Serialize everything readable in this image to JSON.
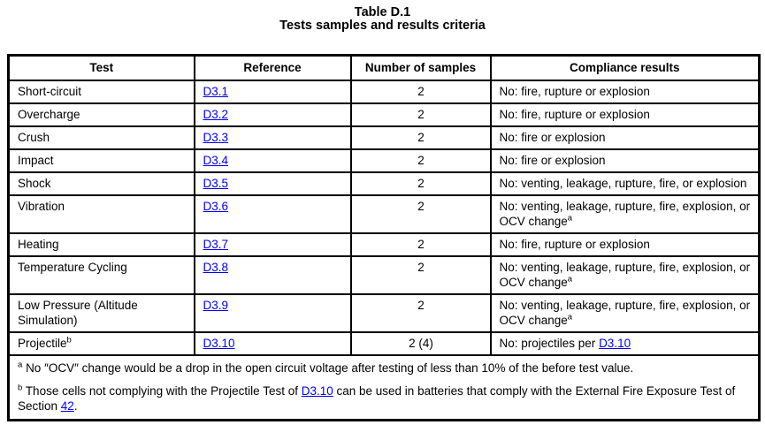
{
  "title": {
    "line1": "Table D.1",
    "line2": "Tests samples and results criteria"
  },
  "link_color": "#0000ee",
  "table": {
    "columns": [
      "Test",
      "Reference",
      "Number of samples",
      "Compliance results"
    ],
    "rows": [
      {
        "test": [
          {
            "text": "Short-circuit"
          }
        ],
        "reference": "D3.1",
        "samples": "2",
        "compliance": [
          {
            "text": "No: fire, rupture or explosion"
          }
        ]
      },
      {
        "test": [
          {
            "text": "Overcharge"
          }
        ],
        "reference": "D3.2",
        "samples": "2",
        "compliance": [
          {
            "text": "No: fire, rupture or explosion"
          }
        ]
      },
      {
        "test": [
          {
            "text": "Crush"
          }
        ],
        "reference": "D3.3",
        "samples": "2",
        "compliance": [
          {
            "text": "No: fire or explosion"
          }
        ]
      },
      {
        "test": [
          {
            "text": "Impact"
          }
        ],
        "reference": "D3.4",
        "samples": "2",
        "compliance": [
          {
            "text": "No: fire or explosion"
          }
        ]
      },
      {
        "test": [
          {
            "text": "Shock"
          }
        ],
        "reference": "D3.5",
        "samples": "2",
        "compliance": [
          {
            "text": "No: venting, leakage, rupture, fire, or explosion"
          }
        ]
      },
      {
        "test": [
          {
            "text": "Vibration"
          }
        ],
        "reference": "D3.6",
        "samples": "2",
        "compliance": [
          {
            "text": "No: venting, leakage, rupture, fire, explosion, or OCV change"
          },
          {
            "sup": "a"
          }
        ]
      },
      {
        "test": [
          {
            "text": "Heating"
          }
        ],
        "reference": "D3.7",
        "samples": "2",
        "compliance": [
          {
            "text": "No: fire, rupture or explosion"
          }
        ]
      },
      {
        "test": [
          {
            "text": "Temperature Cycling"
          }
        ],
        "reference": "D3.8",
        "samples": "2",
        "compliance": [
          {
            "text": "No: venting, leakage, rupture, fire, explosion, or OCV change"
          },
          {
            "sup": "a"
          }
        ]
      },
      {
        "test": [
          {
            "text": "Low Pressure (Altitude Simulation)"
          }
        ],
        "reference": "D3.9",
        "samples": "2",
        "compliance": [
          {
            "text": "No: venting, leakage, rupture, fire, explosion, or OCV change"
          },
          {
            "sup": "a"
          }
        ]
      },
      {
        "test": [
          {
            "text": "Projectile"
          },
          {
            "sup": "b"
          }
        ],
        "reference": "D3.10",
        "samples": "2 (4)",
        "compliance": [
          {
            "text": "No: projectiles per "
          },
          {
            "link": "D3.10"
          }
        ]
      }
    ],
    "footnotes": [
      {
        "marker": "a",
        "parts": [
          {
            "text": "No ″OCV″ change would be a drop in the open circuit voltage after testing of less than 10% of the before test value."
          }
        ]
      },
      {
        "marker": "b",
        "parts": [
          {
            "text": "Those cells not complying with the Projectile Test of "
          },
          {
            "link": "D3.10"
          },
          {
            "text": " can be used in batteries that comply with the External Fire Exposure Test of Section "
          },
          {
            "link": "42"
          },
          {
            "text": "."
          }
        ]
      }
    ]
  }
}
